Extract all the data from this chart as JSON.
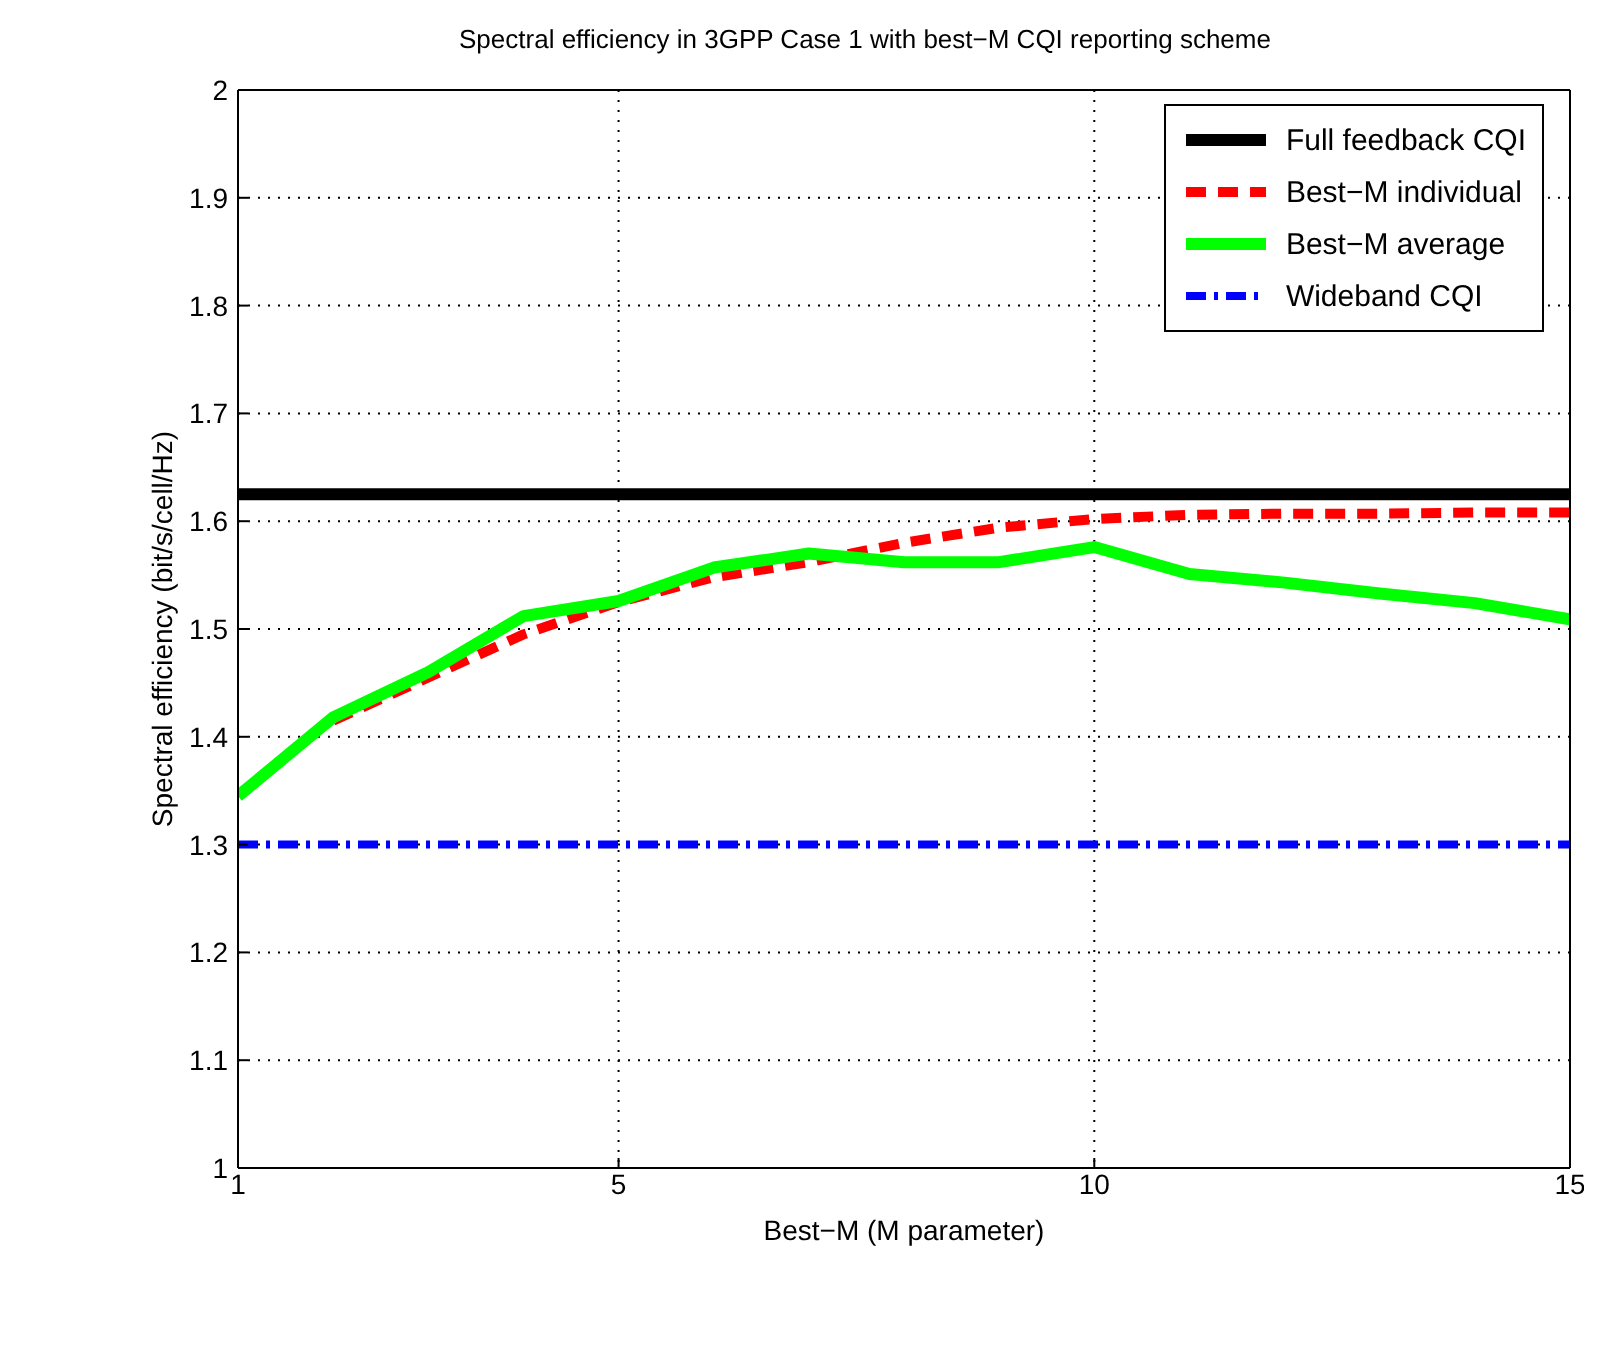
{
  "chart_data": {
    "type": "line",
    "title": "Spectral efficiency in 3GPP Case 1 with best−M CQI reporting scheme",
    "xlabel": "Best−M (M parameter)",
    "ylabel": "Spectral efficiency (bit/s/cell/Hz)",
    "x": [
      1,
      2,
      3,
      4,
      5,
      6,
      7,
      8,
      9,
      10,
      11,
      12,
      13,
      14,
      15
    ],
    "series": [
      {
        "name": "Full feedback CQI",
        "color": "#000000",
        "line_style": "solid",
        "values": [
          1.625,
          1.625,
          1.625,
          1.625,
          1.625,
          1.625,
          1.625,
          1.625,
          1.625,
          1.625,
          1.625,
          1.625,
          1.625,
          1.625,
          1.625
        ]
      },
      {
        "name": "Best−M individual",
        "color": "#ff0000",
        "line_style": "dashed",
        "values": [
          null,
          1.415,
          1.455,
          1.495,
          1.525,
          1.548,
          1.562,
          1.58,
          1.594,
          1.602,
          1.606,
          1.607,
          1.607,
          1.608,
          1.608
        ]
      },
      {
        "name": "Best−M average",
        "color": "#00ff00",
        "line_style": "solid",
        "values": [
          1.345,
          1.418,
          1.46,
          1.512,
          1.526,
          1.557,
          1.57,
          1.562,
          1.562,
          1.576,
          1.551,
          1.543,
          1.533,
          1.524,
          1.509
        ]
      },
      {
        "name": "Wideband CQI",
        "color": "#0000ff",
        "line_style": "dashdot",
        "values": [
          1.3,
          1.3,
          1.3,
          1.3,
          1.3,
          1.3,
          1.3,
          1.3,
          1.3,
          1.3,
          1.3,
          1.3,
          1.3,
          1.3,
          1.3
        ]
      }
    ],
    "xlim": [
      1,
      15
    ],
    "xticks": [
      1,
      5,
      10,
      15
    ],
    "ylim": [
      1,
      2
    ],
    "yticks": [
      1,
      1.1,
      1.2,
      1.3,
      1.4,
      1.5,
      1.6,
      1.7,
      1.8,
      1.9,
      2
    ],
    "grid": true,
    "legend": "top right",
    "marker": "none"
  }
}
